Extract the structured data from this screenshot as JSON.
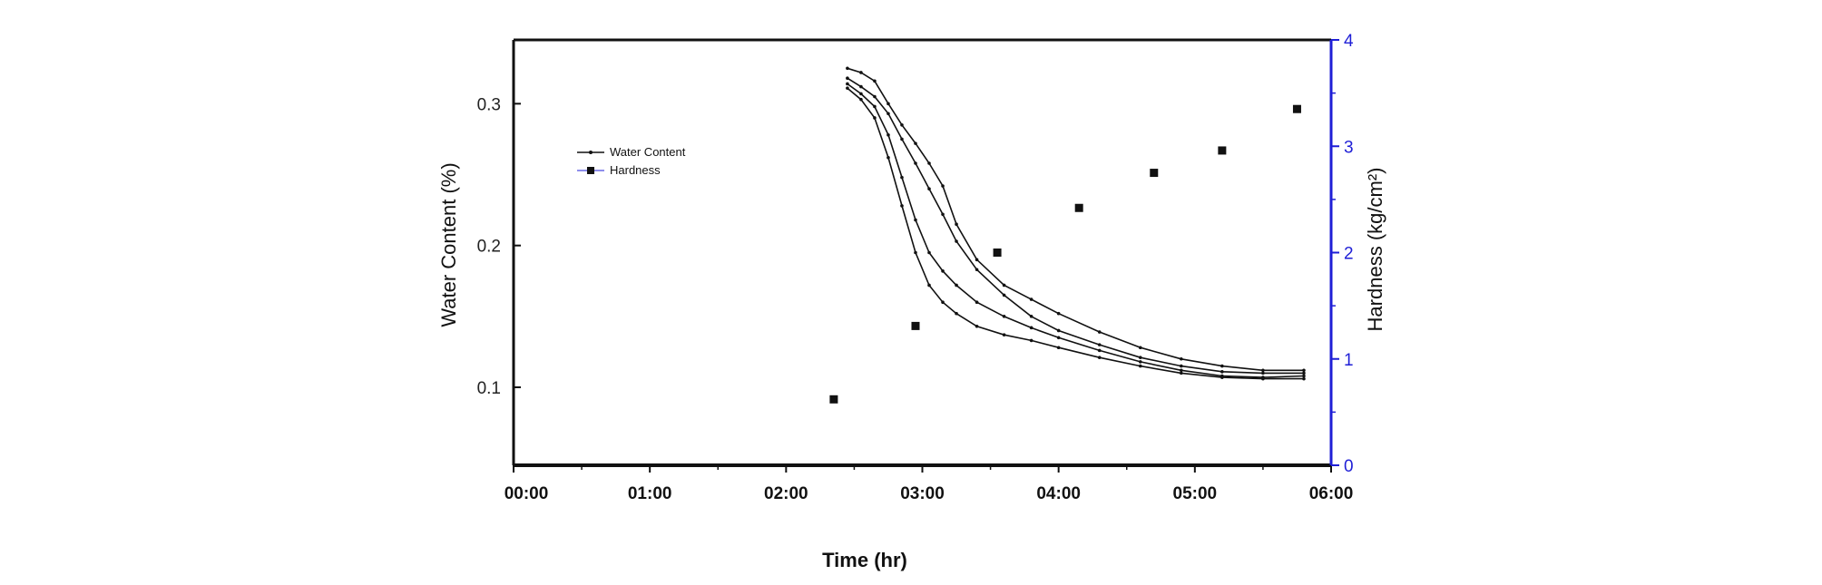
{
  "chart_data": {
    "type": "scatter",
    "title": "",
    "xlabel": "Time (hr)",
    "ylabel_left": "Water Content (%)",
    "ylabel_right": "Hardness (kg/cm²)",
    "xlim": [
      0,
      6
    ],
    "ylim_left": [
      0.045,
      0.345
    ],
    "ylim_right": [
      0,
      4
    ],
    "x_ticks": [
      0,
      1,
      2,
      3,
      4,
      5,
      6
    ],
    "x_tick_labels": [
      "00:00",
      "01:00",
      "02:00",
      "03:00",
      "04:00",
      "05:00",
      "06:00"
    ],
    "y_left_ticks": [
      0.1,
      0.2,
      0.3
    ],
    "y_left_tick_labels": [
      "0.1",
      "0.2",
      "0.3"
    ],
    "y_right_ticks": [
      0,
      1,
      2,
      3,
      4
    ],
    "y_right_tick_labels": [
      "0",
      "1",
      "2",
      "3",
      "4"
    ],
    "right_axis_color": "#1f1fd6",
    "grid": false,
    "legend_position": "top-left",
    "legend": [
      {
        "label": "Water Content",
        "marker": "dot-line"
      },
      {
        "label": "Hardness",
        "marker": "square"
      }
    ],
    "series": [
      {
        "name": "Water Content",
        "axis": "left",
        "style": "line-dots",
        "curves": [
          {
            "x": [
              2.45,
              2.55,
              2.65,
              2.75,
              2.85,
              2.95,
              3.05,
              3.15,
              3.25,
              3.4,
              3.6,
              3.8,
              4.0,
              4.3,
              4.6,
              4.9,
              5.2,
              5.5,
              5.8
            ],
            "y": [
              0.325,
              0.322,
              0.316,
              0.3,
              0.285,
              0.272,
              0.258,
              0.242,
              0.215,
              0.19,
              0.172,
              0.162,
              0.152,
              0.139,
              0.128,
              0.12,
              0.115,
              0.112,
              0.112
            ]
          },
          {
            "x": [
              2.45,
              2.55,
              2.65,
              2.75,
              2.85,
              2.95,
              3.05,
              3.15,
              3.25,
              3.4,
              3.6,
              3.8,
              4.0,
              4.3,
              4.6,
              4.9,
              5.2,
              5.5,
              5.8
            ],
            "y": [
              0.318,
              0.312,
              0.305,
              0.293,
              0.275,
              0.258,
              0.24,
              0.222,
              0.203,
              0.183,
              0.165,
              0.15,
              0.14,
              0.13,
              0.121,
              0.115,
              0.111,
              0.11,
              0.11
            ]
          },
          {
            "x": [
              2.45,
              2.55,
              2.65,
              2.75,
              2.85,
              2.95,
              3.05,
              3.15,
              3.25,
              3.4,
              3.6,
              3.8,
              4.0,
              4.3,
              4.6,
              4.9,
              5.2,
              5.5,
              5.8
            ],
            "y": [
              0.314,
              0.307,
              0.298,
              0.278,
              0.248,
              0.218,
              0.195,
              0.182,
              0.172,
              0.16,
              0.15,
              0.142,
              0.135,
              0.126,
              0.118,
              0.112,
              0.108,
              0.107,
              0.108
            ]
          },
          {
            "x": [
              2.45,
              2.55,
              2.65,
              2.75,
              2.85,
              2.95,
              3.05,
              3.15,
              3.25,
              3.4,
              3.6,
              3.8,
              4.0,
              4.3,
              4.6,
              4.9,
              5.2,
              5.5,
              5.8
            ],
            "y": [
              0.311,
              0.303,
              0.29,
              0.262,
              0.228,
              0.195,
              0.172,
              0.16,
              0.152,
              0.143,
              0.137,
              0.133,
              0.128,
              0.121,
              0.115,
              0.11,
              0.107,
              0.106,
              0.106
            ]
          }
        ]
      },
      {
        "name": "Hardness",
        "axis": "right",
        "style": "square",
        "x": [
          2.35,
          2.95,
          3.55,
          4.15,
          4.7,
          5.2,
          5.75
        ],
        "y": [
          0.62,
          1.31,
          2.0,
          2.42,
          2.75,
          2.96,
          3.35
        ]
      }
    ]
  }
}
